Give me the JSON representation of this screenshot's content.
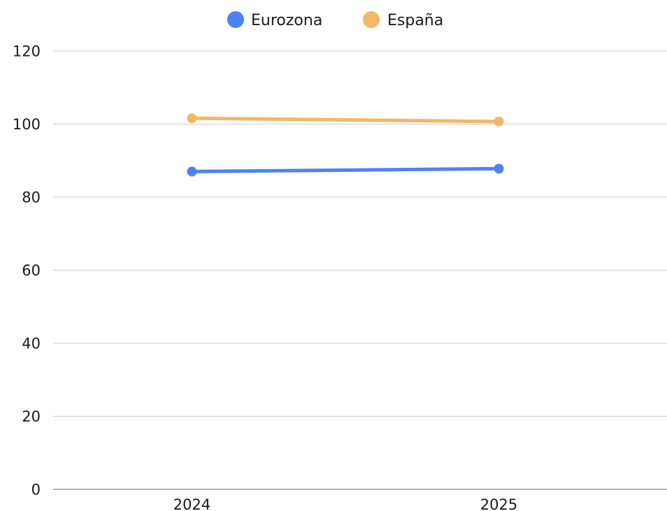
{
  "chart_data": {
    "type": "line",
    "title": "",
    "xlabel": "",
    "ylabel": "",
    "categories": [
      "2024",
      "2025"
    ],
    "series": [
      {
        "name": "Eurozona",
        "values": [
          87,
          87.8
        ],
        "color": "#4e82f4"
      },
      {
        "name": "España",
        "values": [
          101.6,
          100.7
        ],
        "color": "#f2b865"
      }
    ],
    "ylim": [
      0,
      120
    ],
    "yticks": [
      0,
      20,
      40,
      60,
      80,
      100,
      120
    ],
    "grid": true,
    "legend_position": "top-center"
  }
}
